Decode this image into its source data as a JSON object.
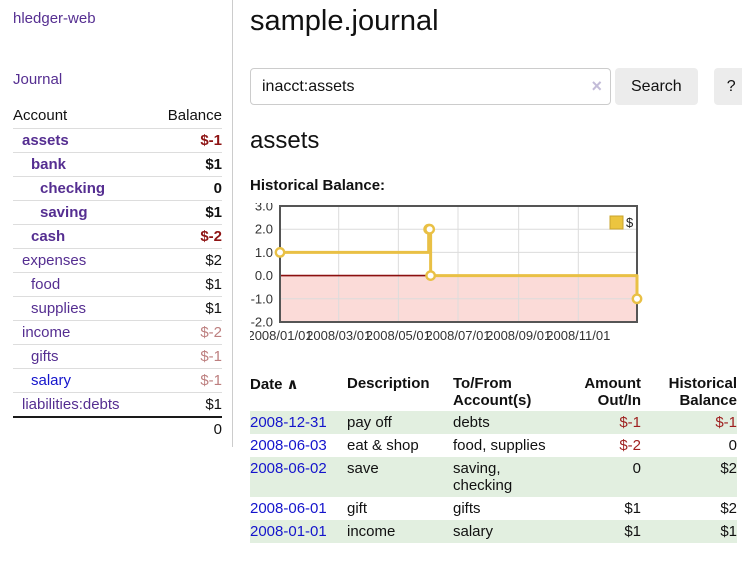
{
  "app": {
    "brand": "hledger-web"
  },
  "nav": {
    "journal": "Journal"
  },
  "sidebar": {
    "columns": {
      "account": "Account",
      "balance": "Balance"
    },
    "accounts": [
      {
        "name": "assets",
        "level": 1,
        "emph": true,
        "balance": "$-1",
        "balance_style": "neg-strong"
      },
      {
        "name": "bank",
        "level": 2,
        "emph": true,
        "balance": "$1",
        "balance_style": "pos"
      },
      {
        "name": "checking",
        "level": 3,
        "emph": true,
        "balance": "0",
        "balance_style": "pos"
      },
      {
        "name": "saving",
        "level": 3,
        "emph": true,
        "balance": "$1",
        "balance_style": "pos"
      },
      {
        "name": "cash",
        "level": 2,
        "emph": true,
        "balance": "$-2",
        "balance_style": "neg-strong"
      },
      {
        "name": "expenses",
        "level": 1,
        "emph": false,
        "balance": "$2",
        "balance_style": "pos"
      },
      {
        "name": "food",
        "level": 2,
        "emph": false,
        "balance": "$1",
        "balance_style": "pos"
      },
      {
        "name": "supplies",
        "level": 2,
        "emph": false,
        "balance": "$1",
        "balance_style": "pos"
      },
      {
        "name": "income",
        "level": 1,
        "emph": false,
        "balance": "$-2",
        "balance_style": "neg-soft"
      },
      {
        "name": "gifts",
        "level": 2,
        "emph": false,
        "balance": "$-1",
        "balance_style": "neg-soft"
      },
      {
        "name": "salary",
        "level": 2,
        "emph": false,
        "link_style": "blue",
        "balance": "$-1",
        "balance_style": "neg-soft"
      },
      {
        "name": "liabilities:debts",
        "level": 1,
        "emph": false,
        "balance": "$1",
        "balance_style": "pos"
      }
    ],
    "total": "0"
  },
  "header": {
    "title": "sample.journal"
  },
  "search": {
    "value": "inacct:assets",
    "clear_icon": "×",
    "button_label": "Search",
    "help_label": "?"
  },
  "account_page": {
    "title": "assets",
    "chart_label": "Historical Balance:"
  },
  "chart_data": {
    "type": "line",
    "steps": true,
    "series": [
      {
        "name": "$",
        "x": [
          "2008-01-01",
          "2008-06-01",
          "2008-06-02",
          "2008-06-03",
          "2008-12-31"
        ],
        "y": [
          1,
          2,
          2,
          0,
          -1
        ]
      }
    ],
    "xrange": [
      "2008-01-01",
      "2008-12-31"
    ],
    "ylim": [
      -2,
      3
    ],
    "yticks": [
      "3.0",
      "2.0",
      "1.0",
      "0.0",
      "-1.0",
      "-2.0"
    ],
    "xticks": [
      "2008/01/01",
      "2008/03/01",
      "2008/05/01",
      "2008/07/01",
      "2008/09/01",
      "2008/11/01"
    ],
    "legend": {
      "label": "$",
      "position": "top-right"
    },
    "grid": true,
    "colors": {
      "line": "#e9c045",
      "marker_fill": "#ffffff",
      "legend_fill": "#ecc53f",
      "legend_border": "#c9a42e",
      "negative_region": "#fbdbd8",
      "zero_line": "#8b0f0f",
      "gridline": "#dcdcdc",
      "border": "#555555",
      "tick_text": "#333333"
    }
  },
  "register": {
    "columns": {
      "date": "Date",
      "sort_icon": "∧",
      "description": "Description",
      "accounts": "To/From Account(s)",
      "amount": "Amount Out/In",
      "balance": "Historical Balance"
    },
    "rows": [
      {
        "date": "2008-12-31",
        "description": "pay off",
        "accounts": "debts",
        "amount": "$-1",
        "amount_style": "neg",
        "balance": "$-1",
        "balance_style": "neg"
      },
      {
        "date": "2008-06-03",
        "description": "eat & shop",
        "accounts": "food, supplies",
        "amount": "$-2",
        "amount_style": "neg",
        "balance": "0",
        "balance_style": "pos"
      },
      {
        "date": "2008-06-02",
        "description": "save",
        "accounts": "saving, checking",
        "amount": "0",
        "amount_style": "pos",
        "balance": "$2",
        "balance_style": "pos"
      },
      {
        "date": "2008-06-01",
        "description": "gift",
        "accounts": "gifts",
        "amount": "$1",
        "amount_style": "pos",
        "balance": "$2",
        "balance_style": "pos"
      },
      {
        "date": "2008-01-01",
        "description": "income",
        "accounts": "salary",
        "amount": "$1",
        "amount_style": "pos",
        "balance": "$1",
        "balance_style": "pos"
      }
    ]
  },
  "colors": {
    "accent_purple": "#552e91",
    "link_blue": "#1414cc",
    "row_green": "#e2efe0",
    "neg_red_strong": "#8e1414",
    "neg_red_soft": "#bd7f7f"
  }
}
